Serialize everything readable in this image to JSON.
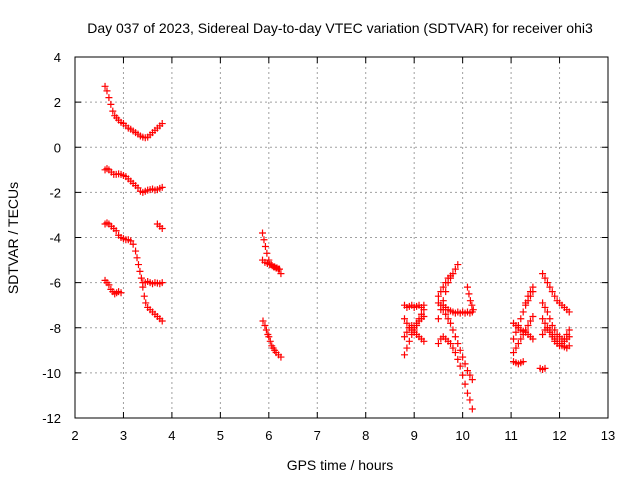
{
  "chart_data": {
    "type": "scatter",
    "title": "Day 037 of 2023, Sidereal Day-to-day VTEC variation (SDTVAR) for receiver ohi3",
    "xlabel": "GPS time / hours",
    "ylabel": "SDTVAR / TECUs",
    "xlim": [
      2,
      13
    ],
    "ylim": [
      -12,
      4
    ],
    "xticks": [
      "2",
      "3",
      "4",
      "5",
      "6",
      "7",
      "8",
      "9",
      "10",
      "11",
      "12",
      "13"
    ],
    "yticks": [
      "4",
      "2",
      "0",
      "-2",
      "-4",
      "-6",
      "-8",
      "-10",
      "-12"
    ],
    "grid": true,
    "marker": "+",
    "series_color": "#ff0000",
    "tracks": [
      {
        "name": "t1",
        "x": [
          2.62,
          2.66,
          2.7,
          2.74,
          2.78,
          2.82,
          2.86,
          2.9,
          2.95,
          3.0,
          3.05,
          3.1,
          3.15,
          3.2,
          3.25,
          3.3,
          3.35,
          3.4,
          3.45,
          3.5,
          3.55,
          3.6,
          3.65,
          3.7,
          3.75,
          3.8
        ],
        "y": [
          2.7,
          2.5,
          2.2,
          1.9,
          1.6,
          1.4,
          1.3,
          1.2,
          1.1,
          1.05,
          0.95,
          0.85,
          0.8,
          0.72,
          0.65,
          0.58,
          0.5,
          0.45,
          0.42,
          0.45,
          0.55,
          0.65,
          0.75,
          0.85,
          0.95,
          1.05
        ]
      },
      {
        "name": "t2",
        "x": [
          2.62,
          2.66,
          2.7,
          2.75,
          2.8,
          2.85,
          2.9,
          2.95,
          3.0,
          3.05,
          3.1,
          3.15,
          3.2,
          3.25,
          3.3,
          3.35,
          3.4,
          3.45,
          3.5,
          3.55,
          3.6,
          3.65,
          3.7,
          3.75,
          3.8
        ],
        "y": [
          -1.0,
          -0.95,
          -1.0,
          -1.1,
          -1.2,
          -1.2,
          -1.18,
          -1.2,
          -1.25,
          -1.3,
          -1.4,
          -1.5,
          -1.6,
          -1.7,
          -1.8,
          -1.95,
          -2.0,
          -1.95,
          -1.9,
          -1.88,
          -1.85,
          -1.9,
          -1.88,
          -1.82,
          -1.78
        ]
      },
      {
        "name": "t3",
        "x": [
          3.7,
          3.75,
          3.8
        ],
        "y": [
          -3.4,
          -3.5,
          -3.6
        ]
      },
      {
        "name": "t4",
        "x": [
          2.62,
          2.66,
          2.7,
          2.75,
          2.8,
          2.85,
          2.9,
          2.95,
          3.0,
          3.05,
          3.1,
          3.15,
          3.2,
          3.25,
          3.28,
          3.31,
          3.34,
          3.37,
          3.4,
          3.43,
          3.46,
          3.5,
          3.55,
          3.6,
          3.65,
          3.7,
          3.75,
          3.8
        ],
        "y": [
          -3.4,
          -3.35,
          -3.4,
          -3.5,
          -3.6,
          -3.7,
          -3.9,
          -4.0,
          -4.05,
          -4.1,
          -4.1,
          -4.15,
          -4.3,
          -4.6,
          -4.9,
          -5.2,
          -5.5,
          -5.8,
          -6.2,
          -6.6,
          -6.9,
          -7.1,
          -7.2,
          -7.3,
          -7.4,
          -7.5,
          -7.6,
          -7.7
        ]
      },
      {
        "name": "t5",
        "x": [
          3.4,
          3.45,
          3.5,
          3.55,
          3.6,
          3.65,
          3.7,
          3.75,
          3.8
        ],
        "y": [
          -6.0,
          -6.0,
          -5.95,
          -6.0,
          -6.05,
          -6.0,
          -6.02,
          -6.05,
          -6.0
        ]
      },
      {
        "name": "t6",
        "x": [
          2.62,
          2.66,
          2.7,
          2.74,
          2.78,
          2.82,
          2.86,
          2.9,
          2.95
        ],
        "y": [
          -5.9,
          -6.0,
          -6.1,
          -6.3,
          -6.4,
          -6.5,
          -6.45,
          -6.4,
          -6.45
        ]
      },
      {
        "name": "t7",
        "x": [
          5.87,
          5.9,
          5.93,
          5.96,
          6.0,
          6.05,
          6.1,
          6.15,
          6.2,
          6.25
        ],
        "y": [
          -3.8,
          -4.1,
          -4.4,
          -4.7,
          -5.0,
          -5.2,
          -5.3,
          -5.35,
          -5.4,
          -5.6
        ]
      },
      {
        "name": "t8",
        "x": [
          5.88,
          5.92,
          5.95,
          5.98,
          6.0,
          6.03,
          6.06,
          6.09,
          6.12,
          6.15,
          6.2,
          6.25
        ],
        "y": [
          -7.7,
          -7.9,
          -8.1,
          -8.3,
          -8.4,
          -8.6,
          -8.8,
          -8.9,
          -9.0,
          -9.1,
          -9.2,
          -9.3
        ]
      },
      {
        "name": "t9",
        "x": [
          5.87,
          5.92,
          5.97,
          6.02,
          6.07,
          6.12,
          6.17,
          6.22
        ],
        "y": [
          -5.0,
          -5.1,
          -5.15,
          -5.2,
          -5.25,
          -5.3,
          -5.35,
          -5.4
        ]
      },
      {
        "name": "t10",
        "x": [
          8.8,
          8.85,
          8.9,
          8.95,
          9.0,
          9.05,
          9.1,
          9.15,
          9.2
        ],
        "y": [
          -9.2,
          -8.9,
          -8.6,
          -8.3,
          -8.0,
          -7.8,
          -7.6,
          -7.4,
          -7.2
        ]
      },
      {
        "name": "t11",
        "x": [
          8.8,
          8.85,
          8.9,
          8.95,
          9.0,
          9.05,
          9.1,
          9.15,
          9.2
        ],
        "y": [
          -7.0,
          -7.1,
          -7.05,
          -7.0,
          -7.1,
          -7.05,
          -7.0,
          -7.1,
          -7.0
        ]
      },
      {
        "name": "t12",
        "x": [
          8.8,
          8.85,
          8.9,
          8.95,
          9.0,
          9.05,
          9.1,
          9.15,
          9.2
        ],
        "y": [
          -8.4,
          -8.2,
          -8.0,
          -7.9,
          -8.1,
          -7.9,
          -7.7,
          -7.6,
          -7.5
        ]
      },
      {
        "name": "t13",
        "x": [
          8.8,
          8.85,
          8.9,
          8.95,
          9.0,
          9.05,
          9.1,
          9.15,
          9.2
        ],
        "y": [
          -7.6,
          -7.8,
          -8.0,
          -8.1,
          -8.2,
          -8.3,
          -8.4,
          -8.5,
          -8.6
        ]
      },
      {
        "name": "t14",
        "x": [
          9.5,
          9.55,
          9.6,
          9.65,
          9.7,
          9.75,
          9.8,
          9.85,
          9.9,
          9.95,
          10.0,
          10.05,
          10.1,
          10.15,
          10.2
        ],
        "y": [
          -8.7,
          -8.5,
          -8.4,
          -8.5,
          -8.6,
          -8.7,
          -8.9,
          -9.1,
          -9.4,
          -9.7,
          -10.1,
          -10.5,
          -10.9,
          -11.2,
          -11.6
        ]
      },
      {
        "name": "t15",
        "x": [
          9.5,
          9.55,
          9.6,
          9.65,
          9.7,
          9.75,
          9.8,
          9.85,
          9.9,
          9.95,
          10.0,
          10.05,
          10.1,
          10.15,
          10.2
        ],
        "y": [
          -6.9,
          -7.0,
          -7.2,
          -7.4,
          -7.6,
          -7.8,
          -8.1,
          -8.4,
          -8.7,
          -9.0,
          -9.3,
          -9.6,
          -9.9,
          -10.1,
          -10.3
        ]
      },
      {
        "name": "t16",
        "x": [
          9.5,
          9.55,
          9.6,
          9.65,
          9.7,
          9.75,
          9.8,
          9.85,
          9.9
        ],
        "y": [
          -7.6,
          -7.2,
          -6.8,
          -6.4,
          -6.0,
          -5.8,
          -5.6,
          -5.4,
          -5.2
        ]
      },
      {
        "name": "t17",
        "x": [
          9.6,
          9.65,
          9.7,
          9.75,
          9.8,
          9.85,
          9.9,
          9.95,
          10.0,
          10.05,
          10.1,
          10.15,
          10.2
        ],
        "y": [
          -7.0,
          -7.1,
          -7.2,
          -7.25,
          -7.3,
          -7.35,
          -7.3,
          -7.35,
          -7.3,
          -7.35,
          -7.3,
          -7.35,
          -7.3
        ]
      },
      {
        "name": "t18",
        "x": [
          9.5,
          9.55,
          9.6,
          9.65,
          9.7,
          9.75
        ],
        "y": [
          -6.6,
          -6.4,
          -6.2,
          -6.0,
          -5.8,
          -5.7
        ]
      },
      {
        "name": "t19",
        "x": [
          10.1,
          10.13,
          10.16,
          10.19,
          10.22
        ],
        "y": [
          -6.2,
          -6.5,
          -6.8,
          -7.0,
          -7.2
        ]
      },
      {
        "name": "t20",
        "x": [
          11.05,
          11.1,
          11.15,
          11.2,
          11.25,
          11.3,
          11.35,
          11.4,
          11.45
        ],
        "y": [
          -8.5,
          -8.2,
          -7.9,
          -7.6,
          -7.3,
          -7.0,
          -6.8,
          -6.6,
          -6.4
        ]
      },
      {
        "name": "t21",
        "x": [
          11.05,
          11.1,
          11.15,
          11.2,
          11.25,
          11.3,
          11.35,
          11.4,
          11.45
        ],
        "y": [
          -7.8,
          -7.9,
          -8.0,
          -8.1,
          -8.15,
          -8.2,
          -8.3,
          -8.4,
          -8.5
        ]
      },
      {
        "name": "t22",
        "x": [
          11.05,
          11.1,
          11.15,
          11.2,
          11.25
        ],
        "y": [
          -9.5,
          -9.55,
          -9.6,
          -9.55,
          -9.5
        ]
      },
      {
        "name": "t23",
        "x": [
          11.3,
          11.35,
          11.4,
          11.45
        ],
        "y": [
          -6.9,
          -6.6,
          -6.4,
          -6.2
        ]
      },
      {
        "name": "t24",
        "x": [
          11.05,
          11.1,
          11.15,
          11.2,
          11.25,
          11.3,
          11.35,
          11.4,
          11.45
        ],
        "y": [
          -9.1,
          -8.9,
          -8.7,
          -8.5,
          -8.3,
          -8.1,
          -7.9,
          -7.7,
          -7.5
        ]
      },
      {
        "name": "t25",
        "x": [
          11.65,
          11.7,
          11.75,
          11.8,
          11.85,
          11.9,
          11.95,
          12.0,
          12.05,
          12.1,
          12.15,
          12.2
        ],
        "y": [
          -5.6,
          -5.8,
          -6.0,
          -6.2,
          -6.4,
          -6.6,
          -6.8,
          -6.9,
          -7.0,
          -7.1,
          -7.2,
          -7.3
        ]
      },
      {
        "name": "t26",
        "x": [
          11.65,
          11.7,
          11.75,
          11.8,
          11.85,
          11.9,
          11.95,
          12.0,
          12.05,
          12.1,
          12.15,
          12.2
        ],
        "y": [
          -7.6,
          -7.8,
          -8.0,
          -8.2,
          -8.4,
          -8.6,
          -8.7,
          -8.8,
          -8.7,
          -8.5,
          -8.3,
          -8.1
        ]
      },
      {
        "name": "t27",
        "x": [
          11.65,
          11.7,
          11.75,
          11.8,
          11.85,
          11.9,
          11.95,
          12.0,
          12.05,
          12.1,
          12.15,
          12.2
        ],
        "y": [
          -6.9,
          -7.1,
          -7.3,
          -7.6,
          -7.9,
          -8.1,
          -8.3,
          -8.4,
          -8.5,
          -8.6,
          -8.5,
          -8.4
        ]
      },
      {
        "name": "t28",
        "x": [
          11.65,
          11.7,
          11.75,
          11.8,
          11.85,
          11.9,
          11.95,
          12.0,
          12.05,
          12.1,
          12.15,
          12.2
        ],
        "y": [
          -8.3,
          -8.1,
          -8.0,
          -8.1,
          -8.3,
          -8.5,
          -8.6,
          -8.7,
          -8.8,
          -8.85,
          -8.9,
          -8.8
        ]
      },
      {
        "name": "t29",
        "x": [
          11.6,
          11.65,
          11.7
        ],
        "y": [
          -9.8,
          -9.85,
          -9.8
        ]
      }
    ]
  }
}
